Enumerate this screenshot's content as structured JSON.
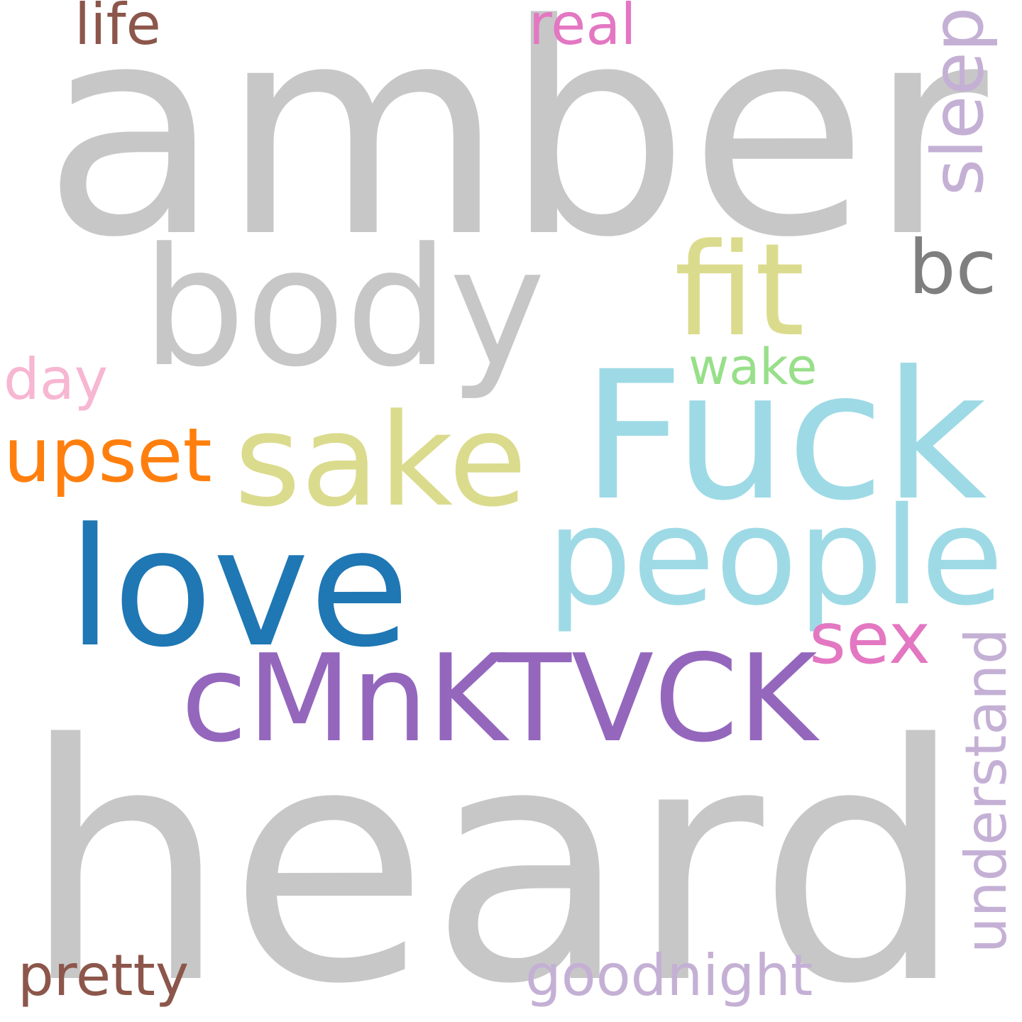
{
  "word_cloud": {
    "words": [
      {
        "id": "heard",
        "text": "heard",
        "color": "#c7c7c7"
      },
      {
        "id": "amber",
        "text": "amber",
        "color": "#c7c7c7"
      },
      {
        "id": "body",
        "text": "body",
        "color": "#c7c7c7"
      },
      {
        "id": "fuck",
        "text": "Fuck",
        "color": "#9edae5"
      },
      {
        "id": "love",
        "text": "love",
        "color": "#1f77b4"
      },
      {
        "id": "people",
        "text": "people",
        "color": "#9edae5"
      },
      {
        "id": "cmnktvck",
        "text": "cMnKTVCK",
        "color": "#9467bd"
      },
      {
        "id": "sake",
        "text": "sake",
        "color": "#dbdb8d"
      },
      {
        "id": "fit",
        "text": "fit",
        "color": "#dbdb8d"
      },
      {
        "id": "upset",
        "text": "upset",
        "color": "#ff7f0e"
      },
      {
        "id": "sleep",
        "text": "sleep",
        "color": "#c5b0d5"
      },
      {
        "id": "understand",
        "text": "understand",
        "color": "#c5b0d5"
      },
      {
        "id": "goodnight",
        "text": "goodnight",
        "color": "#c5b0d5"
      },
      {
        "id": "sex",
        "text": "sex",
        "color": "#e377c2"
      },
      {
        "id": "bc",
        "text": "bc",
        "color": "#7f7f7f"
      },
      {
        "id": "pretty",
        "text": "pretty",
        "color": "#8c564b"
      },
      {
        "id": "wake",
        "text": "wake",
        "color": "#98df8a"
      },
      {
        "id": "real",
        "text": "real",
        "color": "#e377c2"
      },
      {
        "id": "life",
        "text": "life",
        "color": "#8c564b"
      },
      {
        "id": "day",
        "text": "day",
        "color": "#f7b6d2"
      }
    ]
  }
}
